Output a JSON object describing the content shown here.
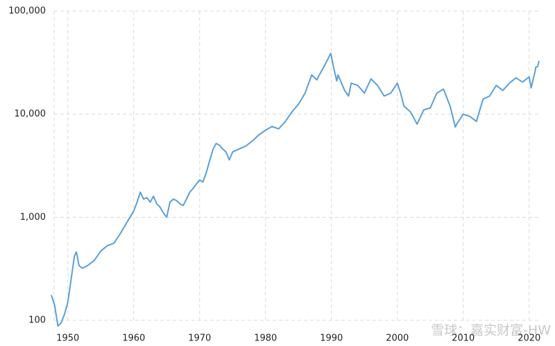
{
  "chart_data": {
    "type": "line",
    "watermark": "雪球：嘉实财富-HW",
    "log_y": true,
    "grid": true,
    "xlim": [
      1947.5,
      2021.5
    ],
    "ylim": [
      100,
      100000
    ],
    "xticks": [
      1950,
      1960,
      1970,
      1980,
      1990,
      2000,
      2010,
      2020
    ],
    "yticks": [
      100,
      {
        "value": 1000,
        "label": "1,000"
      },
      {
        "value": 10000,
        "label": "10,000"
      },
      {
        "value": 100000,
        "label": "100,000"
      }
    ],
    "x": [
      1947.5,
      1948.0,
      1948.5,
      1949.0,
      1949.5,
      1950.0,
      1950.5,
      1951.0,
      1951.3,
      1951.7,
      1952.2,
      1953,
      1954,
      1955,
      1956,
      1957,
      1958,
      1959,
      1960,
      1960.5,
      1961,
      1961.5,
      1962,
      1962.5,
      1963,
      1963.5,
      1964,
      1964.5,
      1965,
      1965.5,
      1966,
      1966.5,
      1967,
      1967.5,
      1968,
      1968.5,
      1969,
      1969.5,
      1970,
      1970.5,
      1971,
      1971.5,
      1972,
      1972.5,
      1973,
      1973.5,
      1974,
      1974.5,
      1975,
      1976,
      1977,
      1978,
      1979,
      1980,
      1981,
      1982,
      1983,
      1984,
      1985,
      1986,
      1987,
      1987.8,
      1988,
      1989,
      1989.9,
      1990.3,
      1990.8,
      1991,
      1992,
      1992.6,
      1993,
      1994,
      1995,
      1996,
      1997,
      1998,
      1999,
      2000,
      2000.5,
      2001,
      2002,
      2003,
      2004,
      2005,
      2006,
      2007,
      2008,
      2008.8,
      2009,
      2010,
      2011,
      2012,
      2013,
      2014,
      2015,
      2016,
      2017,
      2018,
      2019,
      2020,
      2020.3,
      2020.9,
      2021,
      2021.3,
      2021.5
    ],
    "series": [
      {
        "color": "#5a9fd8",
        "values": [
          176,
          140,
          88,
          95,
          115,
          150,
          250,
          420,
          460,
          340,
          320,
          340,
          380,
          470,
          530,
          560,
          700,
          900,
          1150,
          1400,
          1750,
          1500,
          1550,
          1400,
          1600,
          1350,
          1250,
          1100,
          1000,
          1400,
          1500,
          1450,
          1350,
          1300,
          1500,
          1750,
          1900,
          2100,
          2300,
          2200,
          2700,
          3500,
          4500,
          5200,
          5000,
          4600,
          4300,
          3600,
          4300,
          4600,
          4900,
          5500,
          6300,
          7000,
          7600,
          7200,
          8500,
          10500,
          12500,
          16000,
          24000,
          21500,
          23000,
          30000,
          38900,
          29000,
          21000,
          24000,
          17000,
          15000,
          20000,
          19000,
          16000,
          22000,
          19000,
          15000,
          16000,
          20000,
          16000,
          12000,
          10500,
          8000,
          11000,
          11500,
          16000,
          17500,
          12000,
          7500,
          8000,
          10000,
          9500,
          8500,
          14000,
          15000,
          19000,
          17000,
          20000,
          22500,
          20500,
          23000,
          18000,
          26000,
          28500,
          29000,
          33000
        ]
      }
    ]
  }
}
